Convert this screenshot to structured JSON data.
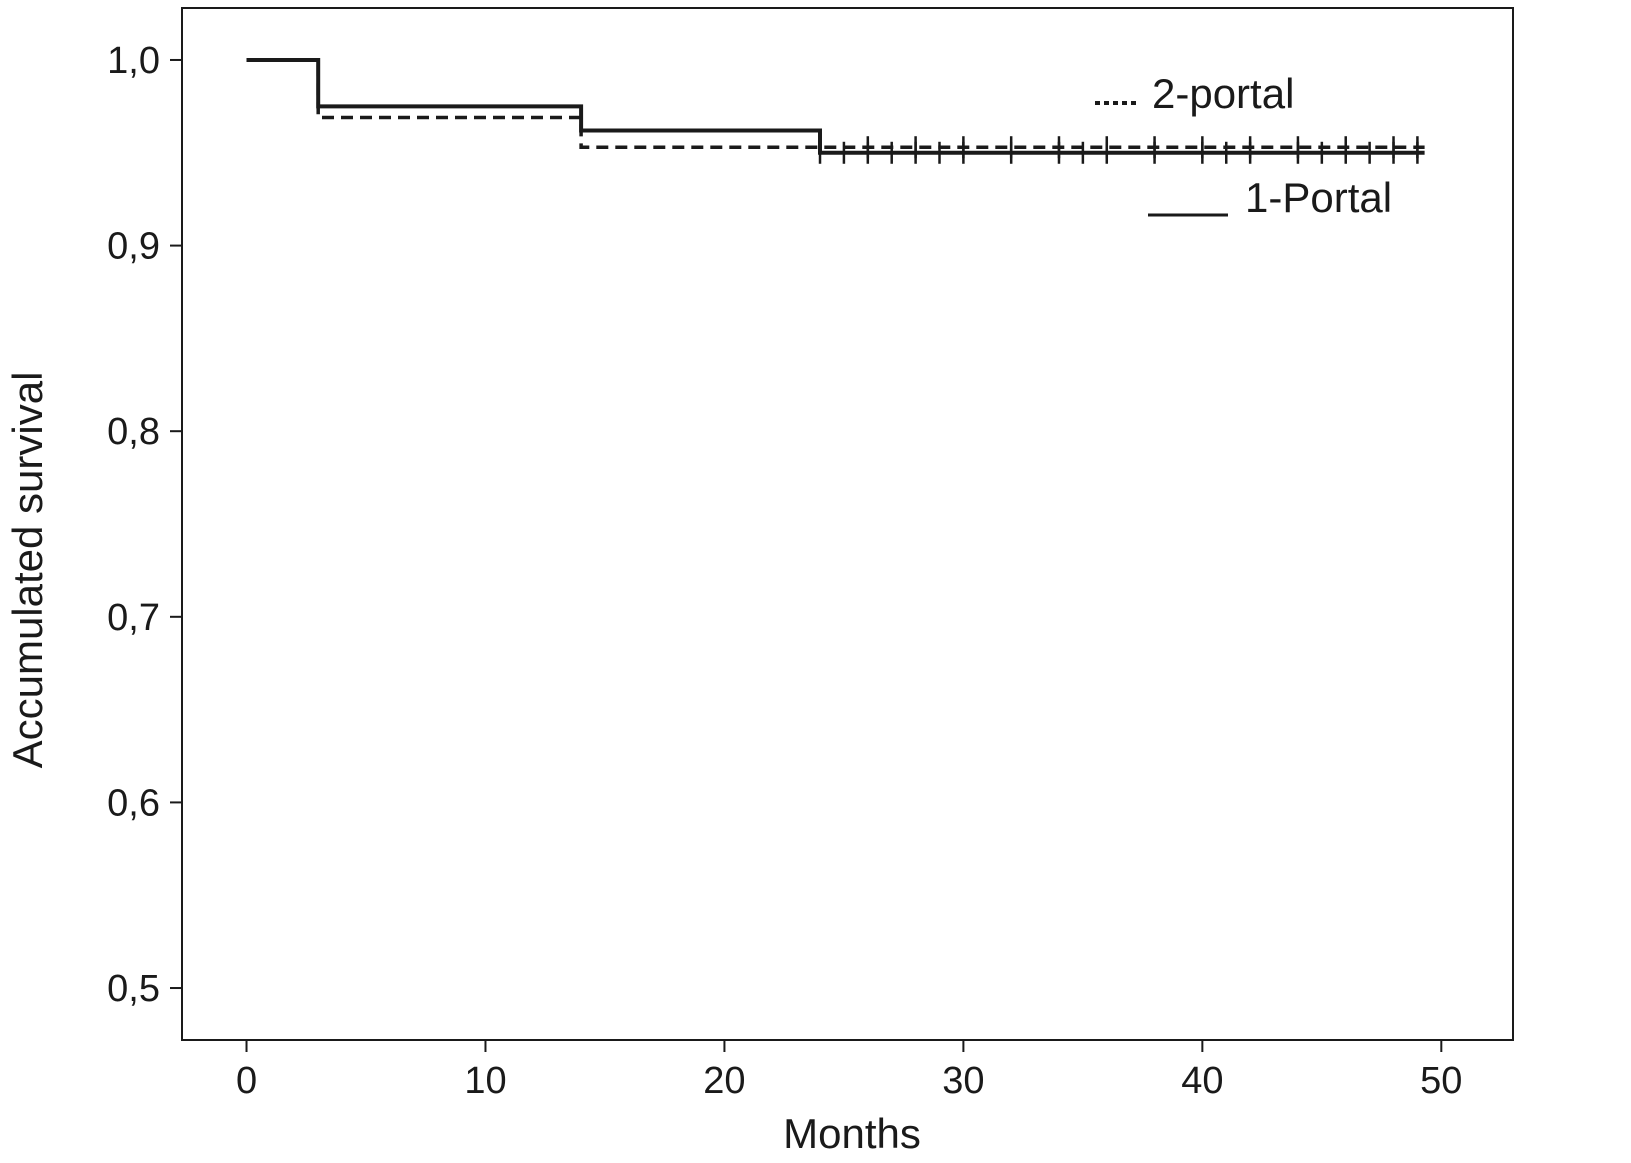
{
  "chart_data": {
    "type": "line",
    "subtype": "kaplan-meier step",
    "xlabel": "Months",
    "ylabel": "Accumulated survival",
    "xlim": [
      -2.7,
      53
    ],
    "ylim": [
      0.472,
      1.028
    ],
    "x_ticks": [
      {
        "value": 0,
        "label": "0"
      },
      {
        "value": 10,
        "label": "10"
      },
      {
        "value": 20,
        "label": "20"
      },
      {
        "value": 30,
        "label": "30"
      },
      {
        "value": 40,
        "label": "40"
      },
      {
        "value": 50,
        "label": "50"
      }
    ],
    "y_ticks": [
      {
        "value": 0.5,
        "label": "0,5"
      },
      {
        "value": 0.6,
        "label": "0,6"
      },
      {
        "value": 0.7,
        "label": "0,7"
      },
      {
        "value": 0.8,
        "label": "0,8"
      },
      {
        "value": 0.9,
        "label": "0,9"
      },
      {
        "value": 1.0,
        "label": "1,0"
      }
    ],
    "grid": false,
    "legend_position": "top-right",
    "series": [
      {
        "name": "2-portal",
        "legend_text": "2-portal",
        "style": "dashed",
        "color": "#1a1a1a",
        "x": [
          0,
          3,
          3,
          14,
          14,
          49.3
        ],
        "y": [
          1.0,
          1.0,
          0.969,
          0.969,
          0.953,
          0.953
        ],
        "censored": [
          26,
          28,
          30,
          32,
          34,
          36,
          38,
          40,
          42,
          44,
          46,
          48,
          49
        ]
      },
      {
        "name": "1-Portal",
        "legend_text": "1-Portal",
        "style": "solid",
        "color": "#1a1a1a",
        "x": [
          0,
          3,
          3,
          14,
          14,
          24,
          24,
          49.3
        ],
        "y": [
          1.0,
          1.0,
          0.975,
          0.975,
          0.962,
          0.962,
          0.95,
          0.95
        ],
        "censored": [
          24,
          25,
          26,
          27,
          28,
          29,
          30,
          32,
          34,
          35,
          36,
          38,
          40,
          41,
          42,
          44,
          45,
          46,
          47,
          48,
          49
        ]
      }
    ]
  }
}
